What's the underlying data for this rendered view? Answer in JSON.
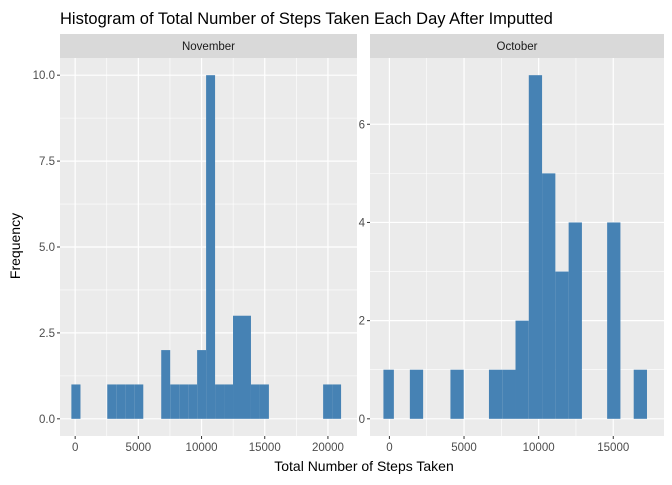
{
  "chart_data": {
    "type": "bar",
    "title": "Histogram of Total Number of Steps Taken Each Day After Imputted",
    "xlabel": "Total Number of Steps Taken",
    "ylabel": "Frequency",
    "bar_color": "#4682B4",
    "panel_bg": "#EBEBEB",
    "strip_bg": "#D9D9D9",
    "grid_color": "#FFFFFF",
    "text_color": "#4D4D4D",
    "panels": [
      {
        "name": "November",
        "strip_label": "November",
        "xlim": [
          -1200,
          22300
        ],
        "ylim": [
          -0.5,
          10.5
        ],
        "x_ticks": [
          0,
          5000,
          10000,
          15000,
          20000
        ],
        "x_tick_labels": [
          "0",
          "5000",
          "10000",
          "15000",
          "20000"
        ],
        "y_ticks": [
          0,
          2.5,
          5,
          7.5,
          10
        ],
        "y_tick_labels": [
          "0.0",
          "2.5",
          "5.0",
          "7.5",
          "10.0"
        ],
        "bins": [
          {
            "x0": -300,
            "x1": 420,
            "count": 1
          },
          {
            "x0": 2540,
            "x1": 3250,
            "count": 1
          },
          {
            "x0": 3250,
            "x1": 3970,
            "count": 1
          },
          {
            "x0": 3970,
            "x1": 4680,
            "count": 1
          },
          {
            "x0": 4680,
            "x1": 5390,
            "count": 1
          },
          {
            "x0": 6810,
            "x1": 7520,
            "count": 2
          },
          {
            "x0": 7520,
            "x1": 8230,
            "count": 1
          },
          {
            "x0": 8230,
            "x1": 8940,
            "count": 1
          },
          {
            "x0": 8940,
            "x1": 9650,
            "count": 1
          },
          {
            "x0": 9650,
            "x1": 10360,
            "count": 2
          },
          {
            "x0": 10360,
            "x1": 11070,
            "count": 10
          },
          {
            "x0": 11070,
            "x1": 11780,
            "count": 1
          },
          {
            "x0": 11780,
            "x1": 12490,
            "count": 1
          },
          {
            "x0": 12490,
            "x1": 13200,
            "count": 3
          },
          {
            "x0": 13200,
            "x1": 13910,
            "count": 3
          },
          {
            "x0": 13910,
            "x1": 14620,
            "count": 1
          },
          {
            "x0": 14620,
            "x1": 15330,
            "count": 1
          },
          {
            "x0": 19620,
            "x1": 20330,
            "count": 1
          },
          {
            "x0": 20330,
            "x1": 21040,
            "count": 1
          }
        ]
      },
      {
        "name": "October",
        "strip_label": "October",
        "xlim": [
          -1300,
          18400
        ],
        "ylim": [
          -0.35,
          7.35
        ],
        "x_ticks": [
          0,
          5000,
          10000,
          15000
        ],
        "x_tick_labels": [
          "0",
          "5000",
          "10000",
          "15000"
        ],
        "y_ticks": [
          0,
          2,
          4,
          6
        ],
        "y_tick_labels": [
          "0",
          "2",
          "4",
          "6"
        ],
        "bins": [
          {
            "x0": -400,
            "x1": 300,
            "count": 1
          },
          {
            "x0": 1370,
            "x1": 2260,
            "count": 1
          },
          {
            "x0": 4090,
            "x1": 4980,
            "count": 1
          },
          {
            "x0": 6670,
            "x1": 7560,
            "count": 1
          },
          {
            "x0": 7560,
            "x1": 8450,
            "count": 1
          },
          {
            "x0": 8450,
            "x1": 9340,
            "count": 2
          },
          {
            "x0": 9340,
            "x1": 10230,
            "count": 7
          },
          {
            "x0": 10230,
            "x1": 11120,
            "count": 5
          },
          {
            "x0": 11120,
            "x1": 12010,
            "count": 3
          },
          {
            "x0": 12010,
            "x1": 12900,
            "count": 4
          },
          {
            "x0": 14590,
            "x1": 15480,
            "count": 4
          },
          {
            "x0": 16370,
            "x1": 17260,
            "count": 1
          }
        ]
      }
    ]
  }
}
